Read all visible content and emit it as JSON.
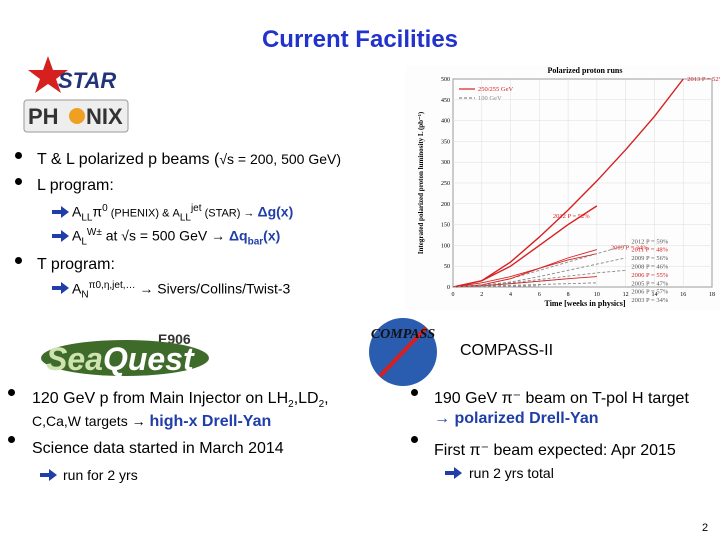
{
  "title": "Current Facilities",
  "logos": {
    "star": "STAR",
    "phenix": [
      "PH",
      "NIX"
    ],
    "seaquest": {
      "experiment": "E906",
      "name": [
        "Sea",
        "Quest"
      ]
    },
    "compass": "COMPASS"
  },
  "rhic": {
    "bullets": [
      [
        "T  & L  polarized p beams  (",
        "√s = 200, 500 GeV)"
      ],
      [
        "L program:"
      ],
      [
        "T program:"
      ]
    ],
    "sub": [
      [
        "A",
        "LL",
        "π",
        "0",
        " (PHENIX) & A",
        "LL",
        "jet",
        " (STAR) → ",
        "Δg(x)"
      ],
      [
        "A",
        "L",
        "W±",
        " at √s = 500 GeV → ",
        "Δq",
        "bar",
        "(x)"
      ],
      [
        "A",
        "N",
        "π0,η,jet,…",
        " → Sivers/Collins/Twist-3"
      ]
    ]
  },
  "seaquest": {
    "bullets": [
      [
        "120 GeV p from Main Injector on LH",
        "2",
        ",LD",
        "2",
        ","
      ],
      [
        "Science data started in March 2014"
      ]
    ],
    "continuation": [
      "C,Ca,W targets → ",
      "high-x Drell-Yan"
    ],
    "sub": "run for 2 yrs"
  },
  "compass": {
    "label": "COMPASS-II",
    "bullets": [
      "190 GeV π⁻ beam on T-pol H target",
      "First π⁻ beam expected: Apr 2015"
    ],
    "continuation": "→ polarized Drell-Yan",
    "sub": "run 2 yrs total"
  },
  "page_number": "2",
  "chart_data": {
    "type": "line",
    "title": "Polarized proton runs",
    "x_label": "Time [weeks in physics]",
    "y_label": "Integrated polarized proton luminosity L (pb⁻¹)",
    "xlim": [
      0,
      18
    ],
    "xticks": [
      0,
      2,
      4,
      6,
      8,
      10,
      12,
      14,
      16,
      18
    ],
    "ylim": [
      0,
      500
    ],
    "yticks": [
      0,
      50,
      100,
      150,
      200,
      250,
      300,
      350,
      400,
      450,
      500
    ],
    "legend": [
      {
        "label": "250/255 GeV",
        "color": "#d62020"
      },
      {
        "label": "100 GeV",
        "color": "#888888",
        "dashed": true
      }
    ],
    "series": [
      {
        "label": "2013 P = 52%",
        "color": "#d62020",
        "x": [
          0,
          2,
          4,
          6,
          8,
          10,
          12,
          14,
          16
        ],
        "values": [
          0,
          15,
          60,
          120,
          185,
          255,
          330,
          410,
          500
        ]
      },
      {
        "label": "2012 P = 52%",
        "color": "#d62020",
        "x": [
          0,
          2,
          4,
          6,
          8,
          10
        ],
        "values": [
          0,
          15,
          50,
          100,
          150,
          195
        ]
      },
      {
        "label": "2009 P = 34%",
        "color": "#d62020",
        "x": [
          0,
          2,
          4,
          6,
          8,
          10
        ],
        "values": [
          0,
          10,
          25,
          45,
          65,
          80
        ]
      },
      {
        "label": "2012 P = 59%",
        "color": "#888888",
        "dashed": true,
        "x": [
          0,
          2,
          4,
          6,
          8,
          10,
          12
        ],
        "values": [
          0,
          5,
          20,
          40,
          60,
          80,
          100
        ]
      },
      {
        "label": "2011 P = 48%",
        "color": "#d62020",
        "x": [
          0,
          2,
          4,
          6,
          8,
          10
        ],
        "values": [
          0,
          5,
          20,
          45,
          70,
          90
        ]
      },
      {
        "label": "2009 P = 56%",
        "color": "#888888",
        "dashed": true,
        "x": [
          0,
          2,
          4,
          6,
          8,
          10,
          12
        ],
        "values": [
          0,
          4,
          12,
          25,
          40,
          55,
          70
        ]
      },
      {
        "label": "2008 P = 46%",
        "color": "#888888",
        "dashed": true,
        "x": [
          0,
          2,
          4,
          6,
          8
        ],
        "values": [
          0,
          3,
          8,
          14,
          20
        ]
      },
      {
        "label": "2006 P = 55%",
        "color": "#d62020",
        "x": [
          0,
          2,
          4,
          6,
          8,
          10
        ],
        "values": [
          0,
          3,
          8,
          14,
          20,
          25
        ]
      },
      {
        "label": "2005 P = 47%",
        "color": "#888888",
        "dashed": true,
        "x": [
          0,
          2,
          4,
          6,
          8,
          10
        ],
        "values": [
          0,
          2,
          4,
          6,
          8,
          10
        ]
      },
      {
        "label": "2006 P = 57%",
        "color": "#888888",
        "dashed": true,
        "x": [
          0,
          2,
          4,
          6,
          8,
          10,
          12
        ],
        "values": [
          0,
          4,
          10,
          18,
          26,
          34,
          40
        ]
      },
      {
        "label": "2003 P = 34%",
        "color": "#888888",
        "dashed": true,
        "x": [
          0,
          2,
          4,
          6
        ],
        "values": [
          0,
          1,
          2,
          3
        ]
      }
    ]
  }
}
